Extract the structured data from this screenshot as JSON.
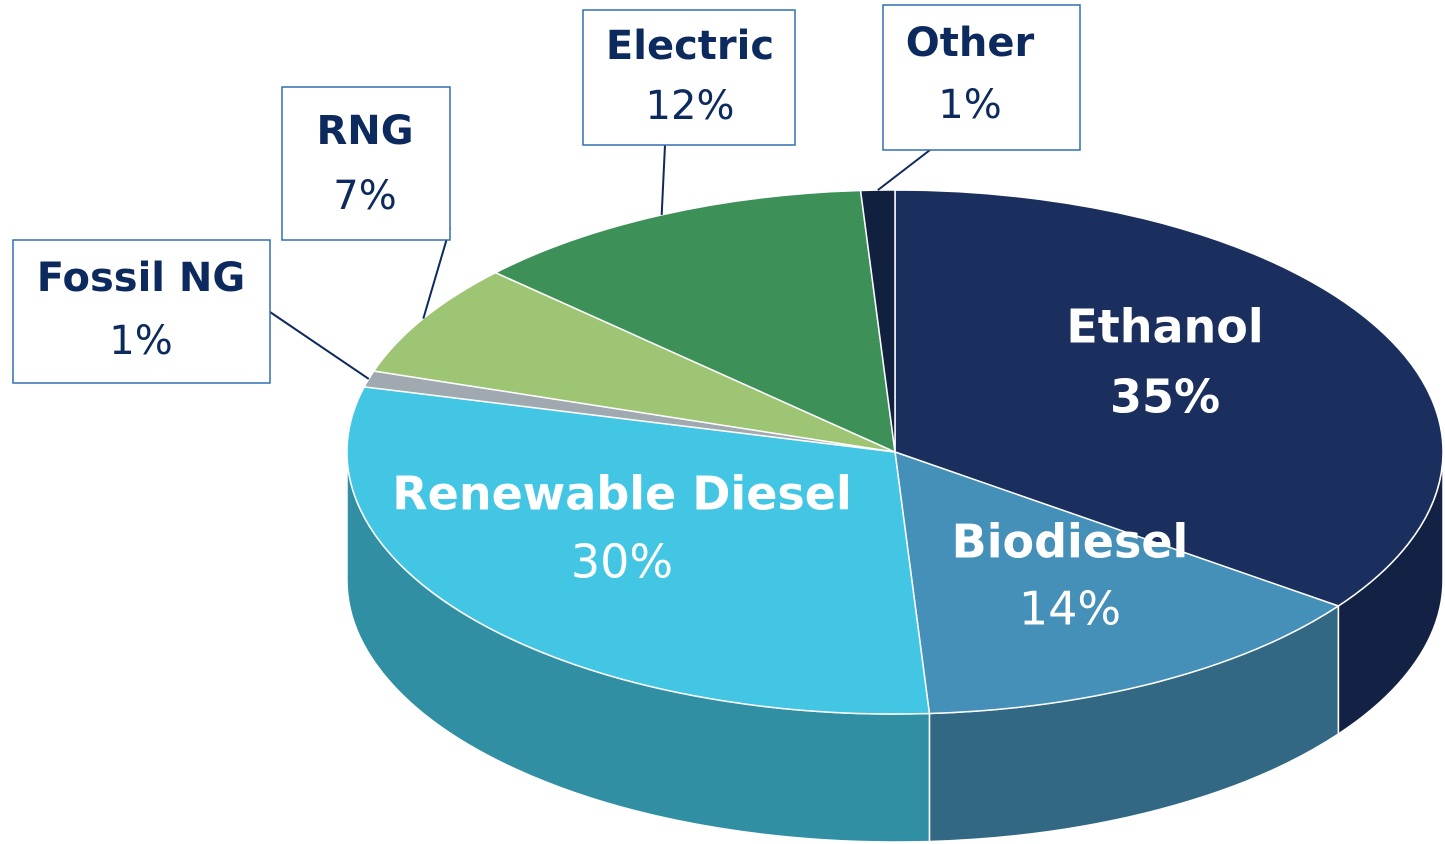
{
  "chart_data": {
    "type": "pie3d",
    "categories": [
      "Ethanol",
      "Biodiesel",
      "Renewable Diesel",
      "Fossil NG",
      "RNG",
      "Electric",
      "Other"
    ],
    "values": [
      35,
      14,
      30,
      1,
      7,
      12,
      1
    ],
    "value_labels": [
      "35%",
      "14%",
      "30%",
      "1%",
      "7%",
      "12%",
      "1%"
    ],
    "colors": [
      "#1b2f5e",
      "#4590b8",
      "#42c6e3",
      "#a0a8b0",
      "#9dc573",
      "#3d9158",
      "#12203f"
    ]
  }
}
